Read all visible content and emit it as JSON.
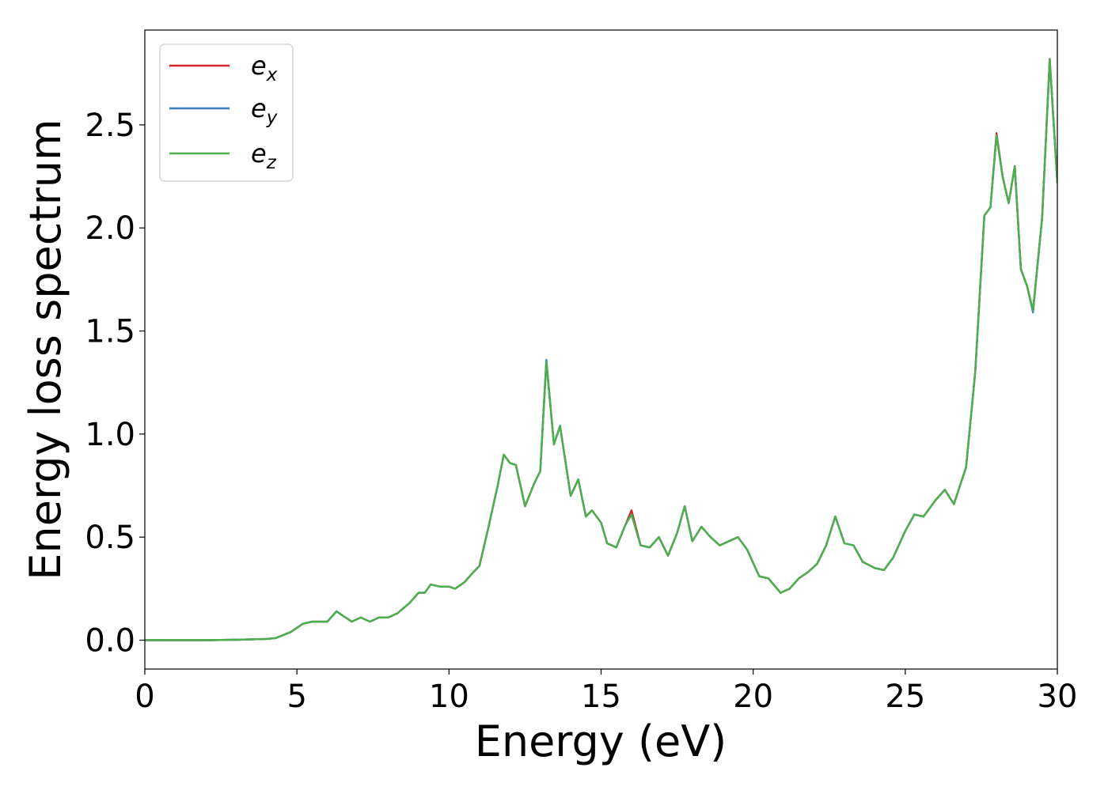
{
  "chart_data": {
    "type": "line",
    "title": "",
    "xlabel": "Energy (eV)",
    "ylabel": "Energy loss spectrum",
    "xlim": [
      0,
      30
    ],
    "ylim": [
      -0.14,
      2.96
    ],
    "xticks": [
      0,
      5,
      10,
      15,
      20,
      25,
      30
    ],
    "xtick_labels": [
      "0",
      "5",
      "10",
      "15",
      "20",
      "25",
      "30"
    ],
    "yticks": [
      0.0,
      0.5,
      1.0,
      1.5,
      2.0,
      2.5
    ],
    "ytick_labels": [
      "0.0",
      "0.5",
      "1.0",
      "1.5",
      "2.0",
      "2.5"
    ],
    "grid": false,
    "legend_position": "top-left",
    "series": [
      {
        "name": "e_x",
        "label_base": "e",
        "label_sub": "x",
        "color": "#d62728",
        "points": [
          [
            0,
            0.0
          ],
          [
            1,
            0.0
          ],
          [
            2,
            0.0
          ],
          [
            3,
            0.002
          ],
          [
            4,
            0.006
          ],
          [
            4.3,
            0.01
          ],
          [
            4.8,
            0.04
          ],
          [
            5.2,
            0.08
          ],
          [
            5.5,
            0.09
          ],
          [
            6,
            0.09
          ],
          [
            6.3,
            0.14
          ],
          [
            6.5,
            0.12
          ],
          [
            6.8,
            0.09
          ],
          [
            7.1,
            0.11
          ],
          [
            7.4,
            0.09
          ],
          [
            7.7,
            0.11
          ],
          [
            8,
            0.11
          ],
          [
            8.3,
            0.13
          ],
          [
            8.7,
            0.18
          ],
          [
            9,
            0.23
          ],
          [
            9.2,
            0.23
          ],
          [
            9.4,
            0.27
          ],
          [
            9.7,
            0.26
          ],
          [
            10,
            0.26
          ],
          [
            10.2,
            0.25
          ],
          [
            10.5,
            0.28
          ],
          [
            10.8,
            0.33
          ],
          [
            11,
            0.36
          ],
          [
            11.3,
            0.55
          ],
          [
            11.6,
            0.75
          ],
          [
            11.8,
            0.9
          ],
          [
            12,
            0.86
          ],
          [
            12.2,
            0.85
          ],
          [
            12.5,
            0.65
          ],
          [
            12.8,
            0.76
          ],
          [
            13,
            0.82
          ],
          [
            13.2,
            1.35
          ],
          [
            13.45,
            0.95
          ],
          [
            13.65,
            1.04
          ],
          [
            14,
            0.7
          ],
          [
            14.25,
            0.78
          ],
          [
            14.5,
            0.6
          ],
          [
            14.7,
            0.63
          ],
          [
            15,
            0.57
          ],
          [
            15.2,
            0.47
          ],
          [
            15.5,
            0.45
          ],
          [
            15.8,
            0.56
          ],
          [
            16,
            0.63
          ],
          [
            16.3,
            0.46
          ],
          [
            16.6,
            0.45
          ],
          [
            16.9,
            0.5
          ],
          [
            17.2,
            0.41
          ],
          [
            17.5,
            0.52
          ],
          [
            17.75,
            0.65
          ],
          [
            18,
            0.48
          ],
          [
            18.3,
            0.55
          ],
          [
            18.6,
            0.5
          ],
          [
            18.9,
            0.46
          ],
          [
            19.2,
            0.48
          ],
          [
            19.5,
            0.5
          ],
          [
            19.8,
            0.44
          ],
          [
            20.2,
            0.31
          ],
          [
            20.5,
            0.3
          ],
          [
            20.9,
            0.23
          ],
          [
            21.2,
            0.25
          ],
          [
            21.5,
            0.3
          ],
          [
            21.8,
            0.33
          ],
          [
            22.1,
            0.37
          ],
          [
            22.4,
            0.46
          ],
          [
            22.7,
            0.6
          ],
          [
            23,
            0.47
          ],
          [
            23.3,
            0.46
          ],
          [
            23.6,
            0.38
          ],
          [
            24,
            0.35
          ],
          [
            24.3,
            0.34
          ],
          [
            24.6,
            0.4
          ],
          [
            25,
            0.53
          ],
          [
            25.3,
            0.61
          ],
          [
            25.6,
            0.6
          ],
          [
            26,
            0.68
          ],
          [
            26.3,
            0.73
          ],
          [
            26.6,
            0.66
          ],
          [
            27,
            0.84
          ],
          [
            27.3,
            1.3
          ],
          [
            27.6,
            2.06
          ],
          [
            27.8,
            2.1
          ],
          [
            28,
            2.46
          ],
          [
            28.2,
            2.25
          ],
          [
            28.4,
            2.12
          ],
          [
            28.6,
            2.3
          ],
          [
            28.8,
            1.8
          ],
          [
            29,
            1.72
          ],
          [
            29.2,
            1.6
          ],
          [
            29.5,
            2.05
          ],
          [
            29.75,
            2.82
          ],
          [
            30,
            2.22
          ]
        ]
      },
      {
        "name": "e_y",
        "label_base": "e",
        "label_sub": "y",
        "color": "#377eb8",
        "points": [
          [
            0,
            0.0
          ],
          [
            1,
            0.0
          ],
          [
            2,
            0.0
          ],
          [
            3,
            0.002
          ],
          [
            4,
            0.006
          ],
          [
            4.3,
            0.01
          ],
          [
            4.8,
            0.04
          ],
          [
            5.2,
            0.08
          ],
          [
            5.5,
            0.09
          ],
          [
            6,
            0.09
          ],
          [
            6.3,
            0.14
          ],
          [
            6.5,
            0.12
          ],
          [
            6.8,
            0.09
          ],
          [
            7.1,
            0.11
          ],
          [
            7.4,
            0.09
          ],
          [
            7.7,
            0.11
          ],
          [
            8,
            0.11
          ],
          [
            8.3,
            0.13
          ],
          [
            8.7,
            0.18
          ],
          [
            9,
            0.23
          ],
          [
            9.2,
            0.23
          ],
          [
            9.4,
            0.27
          ],
          [
            9.7,
            0.26
          ],
          [
            10,
            0.26
          ],
          [
            10.2,
            0.25
          ],
          [
            10.5,
            0.28
          ],
          [
            10.8,
            0.33
          ],
          [
            11,
            0.36
          ],
          [
            11.3,
            0.55
          ],
          [
            11.6,
            0.75
          ],
          [
            11.8,
            0.9
          ],
          [
            12,
            0.86
          ],
          [
            12.2,
            0.85
          ],
          [
            12.5,
            0.65
          ],
          [
            12.8,
            0.76
          ],
          [
            13,
            0.82
          ],
          [
            13.2,
            1.36
          ],
          [
            13.45,
            0.95
          ],
          [
            13.65,
            1.04
          ],
          [
            14,
            0.7
          ],
          [
            14.25,
            0.78
          ],
          [
            14.5,
            0.6
          ],
          [
            14.7,
            0.63
          ],
          [
            15,
            0.57
          ],
          [
            15.2,
            0.47
          ],
          [
            15.5,
            0.45
          ],
          [
            15.8,
            0.56
          ],
          [
            16,
            0.61
          ],
          [
            16.3,
            0.46
          ],
          [
            16.6,
            0.45
          ],
          [
            16.9,
            0.5
          ],
          [
            17.2,
            0.41
          ],
          [
            17.5,
            0.52
          ],
          [
            17.75,
            0.65
          ],
          [
            18,
            0.48
          ],
          [
            18.3,
            0.55
          ],
          [
            18.6,
            0.5
          ],
          [
            18.9,
            0.46
          ],
          [
            19.2,
            0.48
          ],
          [
            19.5,
            0.5
          ],
          [
            19.8,
            0.44
          ],
          [
            20.2,
            0.31
          ],
          [
            20.5,
            0.3
          ],
          [
            20.9,
            0.23
          ],
          [
            21.2,
            0.25
          ],
          [
            21.5,
            0.3
          ],
          [
            21.8,
            0.33
          ],
          [
            22.1,
            0.37
          ],
          [
            22.4,
            0.46
          ],
          [
            22.7,
            0.6
          ],
          [
            23,
            0.47
          ],
          [
            23.3,
            0.46
          ],
          [
            23.6,
            0.38
          ],
          [
            24,
            0.35
          ],
          [
            24.3,
            0.34
          ],
          [
            24.6,
            0.4
          ],
          [
            25,
            0.53
          ],
          [
            25.3,
            0.61
          ],
          [
            25.6,
            0.6
          ],
          [
            26,
            0.68
          ],
          [
            26.3,
            0.73
          ],
          [
            26.6,
            0.66
          ],
          [
            27,
            0.84
          ],
          [
            27.3,
            1.3
          ],
          [
            27.6,
            2.06
          ],
          [
            27.8,
            2.1
          ],
          [
            28,
            2.45
          ],
          [
            28.2,
            2.25
          ],
          [
            28.4,
            2.12
          ],
          [
            28.6,
            2.3
          ],
          [
            28.8,
            1.8
          ],
          [
            29,
            1.72
          ],
          [
            29.2,
            1.59
          ],
          [
            29.5,
            2.05
          ],
          [
            29.75,
            2.81
          ],
          [
            30,
            2.22
          ]
        ]
      },
      {
        "name": "e_z",
        "label_base": "e",
        "label_sub": "z",
        "color": "#4daf4a",
        "points": [
          [
            0,
            0.0
          ],
          [
            1,
            0.0
          ],
          [
            2,
            0.0
          ],
          [
            3,
            0.002
          ],
          [
            4,
            0.006
          ],
          [
            4.3,
            0.01
          ],
          [
            4.8,
            0.04
          ],
          [
            5.2,
            0.08
          ],
          [
            5.5,
            0.09
          ],
          [
            6,
            0.09
          ],
          [
            6.3,
            0.14
          ],
          [
            6.5,
            0.12
          ],
          [
            6.8,
            0.09
          ],
          [
            7.1,
            0.11
          ],
          [
            7.4,
            0.09
          ],
          [
            7.7,
            0.11
          ],
          [
            8,
            0.11
          ],
          [
            8.3,
            0.13
          ],
          [
            8.7,
            0.18
          ],
          [
            9,
            0.23
          ],
          [
            9.2,
            0.23
          ],
          [
            9.4,
            0.27
          ],
          [
            9.7,
            0.26
          ],
          [
            10,
            0.26
          ],
          [
            10.2,
            0.25
          ],
          [
            10.5,
            0.28
          ],
          [
            10.8,
            0.33
          ],
          [
            11,
            0.36
          ],
          [
            11.3,
            0.55
          ],
          [
            11.6,
            0.75
          ],
          [
            11.8,
            0.9
          ],
          [
            12,
            0.86
          ],
          [
            12.2,
            0.85
          ],
          [
            12.5,
            0.65
          ],
          [
            12.8,
            0.76
          ],
          [
            13,
            0.82
          ],
          [
            13.2,
            1.35
          ],
          [
            13.45,
            0.95
          ],
          [
            13.65,
            1.04
          ],
          [
            14,
            0.7
          ],
          [
            14.25,
            0.78
          ],
          [
            14.5,
            0.6
          ],
          [
            14.7,
            0.63
          ],
          [
            15,
            0.57
          ],
          [
            15.2,
            0.47
          ],
          [
            15.5,
            0.45
          ],
          [
            15.8,
            0.56
          ],
          [
            16,
            0.61
          ],
          [
            16.3,
            0.46
          ],
          [
            16.6,
            0.45
          ],
          [
            16.9,
            0.5
          ],
          [
            17.2,
            0.41
          ],
          [
            17.5,
            0.52
          ],
          [
            17.75,
            0.65
          ],
          [
            18,
            0.48
          ],
          [
            18.3,
            0.55
          ],
          [
            18.6,
            0.5
          ],
          [
            18.9,
            0.46
          ],
          [
            19.2,
            0.48
          ],
          [
            19.5,
            0.5
          ],
          [
            19.8,
            0.44
          ],
          [
            20.2,
            0.31
          ],
          [
            20.5,
            0.3
          ],
          [
            20.9,
            0.23
          ],
          [
            21.2,
            0.25
          ],
          [
            21.5,
            0.3
          ],
          [
            21.8,
            0.33
          ],
          [
            22.1,
            0.37
          ],
          [
            22.4,
            0.46
          ],
          [
            22.7,
            0.6
          ],
          [
            23,
            0.47
          ],
          [
            23.3,
            0.46
          ],
          [
            23.6,
            0.38
          ],
          [
            24,
            0.35
          ],
          [
            24.3,
            0.34
          ],
          [
            24.6,
            0.4
          ],
          [
            25,
            0.53
          ],
          [
            25.3,
            0.61
          ],
          [
            25.6,
            0.6
          ],
          [
            26,
            0.68
          ],
          [
            26.3,
            0.73
          ],
          [
            26.6,
            0.66
          ],
          [
            27,
            0.84
          ],
          [
            27.3,
            1.3
          ],
          [
            27.6,
            2.06
          ],
          [
            27.8,
            2.1
          ],
          [
            28,
            2.45
          ],
          [
            28.2,
            2.25
          ],
          [
            28.4,
            2.12
          ],
          [
            28.6,
            2.3
          ],
          [
            28.8,
            1.8
          ],
          [
            29,
            1.72
          ],
          [
            29.2,
            1.6
          ],
          [
            29.5,
            2.05
          ],
          [
            29.75,
            2.82
          ],
          [
            30,
            2.22
          ]
        ]
      }
    ]
  }
}
